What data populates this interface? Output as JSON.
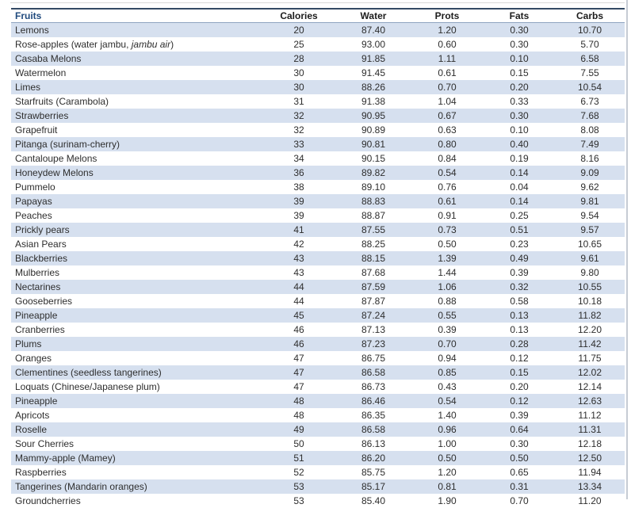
{
  "colors": {
    "header_blue": "#1F497D",
    "border_dark": "#334a64",
    "border_mid": "#8ea4c0",
    "stripe": "#d6e0ef",
    "gridline": "#d9d9d9",
    "gridline_strong": "#c6ccd4"
  },
  "table": {
    "columns": [
      {
        "id": "fruit",
        "label": "Fruits",
        "align": "left"
      },
      {
        "id": "calories",
        "label": "Calories",
        "align": "center"
      },
      {
        "id": "water",
        "label": "Water",
        "align": "center"
      },
      {
        "id": "prots",
        "label": "Prots",
        "align": "center"
      },
      {
        "id": "fats",
        "label": "Fats",
        "align": "center"
      },
      {
        "id": "carbs",
        "label": "Carbs",
        "align": "center"
      }
    ],
    "rows": [
      {
        "fruit": "Lemons",
        "calories": "20",
        "water": "87.40",
        "prots": "1.20",
        "fats": "0.30",
        "carbs": "10.70"
      },
      {
        "fruit": "Rose-apples (water jambu, ",
        "fruit_italic": "jambu air",
        "fruit_after": ")",
        "calories": "25",
        "water": "93.00",
        "prots": "0.60",
        "fats": "0.30",
        "carbs": "5.70"
      },
      {
        "fruit": "Casaba Melons",
        "calories": "28",
        "water": "91.85",
        "prots": "1.11",
        "fats": "0.10",
        "carbs": "6.58"
      },
      {
        "fruit": "Watermelon",
        "calories": "30",
        "water": "91.45",
        "prots": "0.61",
        "fats": "0.15",
        "carbs": "7.55"
      },
      {
        "fruit": "Limes",
        "calories": "30",
        "water": "88.26",
        "prots": "0.70",
        "fats": "0.20",
        "carbs": "10.54"
      },
      {
        "fruit": "Starfruits (Carambola)",
        "calories": "31",
        "water": "91.38",
        "prots": "1.04",
        "fats": "0.33",
        "carbs": "6.73"
      },
      {
        "fruit": "Strawberries",
        "calories": "32",
        "water": "90.95",
        "prots": "0.67",
        "fats": "0.30",
        "carbs": "7.68"
      },
      {
        "fruit": "Grapefruit",
        "calories": "32",
        "water": "90.89",
        "prots": "0.63",
        "fats": "0.10",
        "carbs": "8.08"
      },
      {
        "fruit": "Pitanga (surinam-cherry)",
        "calories": "33",
        "water": "90.81",
        "prots": "0.80",
        "fats": "0.40",
        "carbs": "7.49"
      },
      {
        "fruit": "Cantaloupe Melons",
        "calories": "34",
        "water": "90.15",
        "prots": "0.84",
        "fats": "0.19",
        "carbs": "8.16"
      },
      {
        "fruit": "Honeydew Melons",
        "calories": "36",
        "water": "89.82",
        "prots": "0.54",
        "fats": "0.14",
        "carbs": "9.09"
      },
      {
        "fruit": "Pummelo",
        "calories": "38",
        "water": "89.10",
        "prots": "0.76",
        "fats": "0.04",
        "carbs": "9.62"
      },
      {
        "fruit": "Papayas",
        "calories": "39",
        "water": "88.83",
        "prots": "0.61",
        "fats": "0.14",
        "carbs": "9.81"
      },
      {
        "fruit": "Peaches",
        "calories": "39",
        "water": "88.87",
        "prots": "0.91",
        "fats": "0.25",
        "carbs": "9.54"
      },
      {
        "fruit": "Prickly pears",
        "calories": "41",
        "water": "87.55",
        "prots": "0.73",
        "fats": "0.51",
        "carbs": "9.57"
      },
      {
        "fruit": "Asian Pears",
        "calories": "42",
        "water": "88.25",
        "prots": "0.50",
        "fats": "0.23",
        "carbs": "10.65"
      },
      {
        "fruit": "Blackberries",
        "calories": "43",
        "water": "88.15",
        "prots": "1.39",
        "fats": "0.49",
        "carbs": "9.61"
      },
      {
        "fruit": "Mulberries",
        "calories": "43",
        "water": "87.68",
        "prots": "1.44",
        "fats": "0.39",
        "carbs": "9.80"
      },
      {
        "fruit": "Nectarines",
        "calories": "44",
        "water": "87.59",
        "prots": "1.06",
        "fats": "0.32",
        "carbs": "10.55"
      },
      {
        "fruit": "Gooseberries",
        "calories": "44",
        "water": "87.87",
        "prots": "0.88",
        "fats": "0.58",
        "carbs": "10.18"
      },
      {
        "fruit": "Pineapple",
        "calories": "45",
        "water": "87.24",
        "prots": "0.55",
        "fats": "0.13",
        "carbs": "11.82"
      },
      {
        "fruit": "Cranberries",
        "calories": "46",
        "water": "87.13",
        "prots": "0.39",
        "fats": "0.13",
        "carbs": "12.20"
      },
      {
        "fruit": "Plums",
        "calories": "46",
        "water": "87.23",
        "prots": "0.70",
        "fats": "0.28",
        "carbs": "11.42"
      },
      {
        "fruit": "Oranges",
        "calories": "47",
        "water": "86.75",
        "prots": "0.94",
        "fats": "0.12",
        "carbs": "11.75"
      },
      {
        "fruit": "Clementines (seedless tangerines)",
        "calories": "47",
        "water": "86.58",
        "prots": "0.85",
        "fats": "0.15",
        "carbs": "12.02"
      },
      {
        "fruit": "Loquats (Chinese/Japanese plum)",
        "calories": "47",
        "water": "86.73",
        "prots": "0.43",
        "fats": "0.20",
        "carbs": "12.14"
      },
      {
        "fruit": "Pineapple",
        "calories": "48",
        "water": "86.46",
        "prots": "0.54",
        "fats": "0.12",
        "carbs": "12.63"
      },
      {
        "fruit": "Apricots",
        "calories": "48",
        "water": "86.35",
        "prots": "1.40",
        "fats": "0.39",
        "carbs": "11.12"
      },
      {
        "fruit": "Roselle",
        "calories": "49",
        "water": "86.58",
        "prots": "0.96",
        "fats": "0.64",
        "carbs": "11.31"
      },
      {
        "fruit": "Sour Cherries",
        "calories": "50",
        "water": "86.13",
        "prots": "1.00",
        "fats": "0.30",
        "carbs": "12.18"
      },
      {
        "fruit": "Mammy-apple (Mamey)",
        "calories": "51",
        "water": "86.20",
        "prots": "0.50",
        "fats": "0.50",
        "carbs": "12.50"
      },
      {
        "fruit": "Raspberries",
        "calories": "52",
        "water": "85.75",
        "prots": "1.20",
        "fats": "0.65",
        "carbs": "11.94"
      },
      {
        "fruit": "Tangerines (Mandarin oranges)",
        "calories": "53",
        "water": "85.17",
        "prots": "0.81",
        "fats": "0.31",
        "carbs": "13.34"
      },
      {
        "fruit": "Groundcherries",
        "calories": "53",
        "water": "85.40",
        "prots": "1.90",
        "fats": "0.70",
        "carbs": "11.20",
        "clipped": true
      }
    ]
  }
}
